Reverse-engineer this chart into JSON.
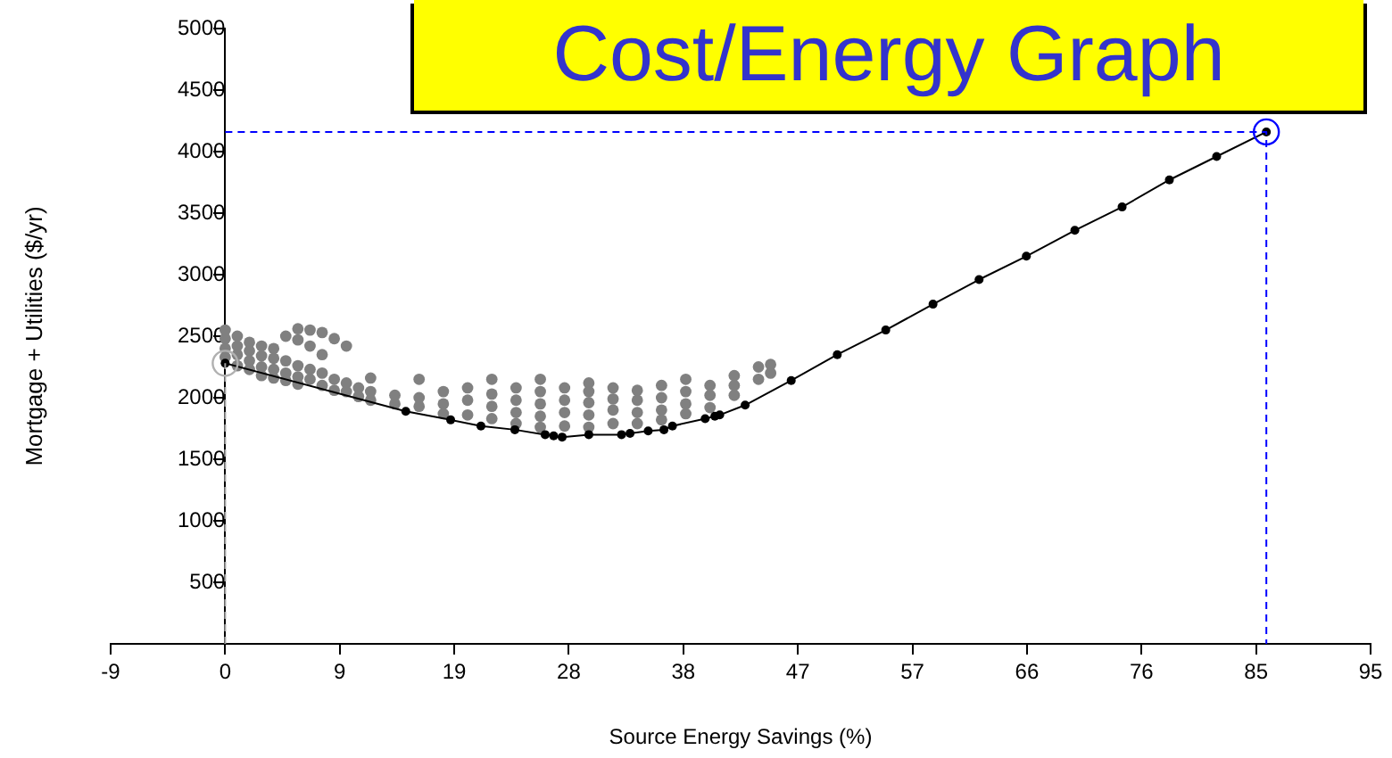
{
  "chart_data": {
    "type": "scatter",
    "title": "Cost/Energy Graph",
    "xlabel": "Source Energy Savings (%)",
    "ylabel": "Mortgage + Utilities ($/yr)",
    "xlim": [
      -9.45,
      94.5
    ],
    "xticks": [
      {
        "value": -9.45,
        "label": "-9"
      },
      0,
      {
        "value": 9.45,
        "label": "9"
      },
      {
        "value": 18.9,
        "label": "19"
      },
      {
        "value": 28.35,
        "label": "28"
      },
      {
        "value": 37.8,
        "label": "38"
      },
      {
        "value": 47.25,
        "label": "47"
      },
      {
        "value": 56.7,
        "label": "57"
      },
      {
        "value": 66.15,
        "label": "66"
      },
      {
        "value": 75.6,
        "label": "76"
      },
      {
        "value": 85.05,
        "label": "85"
      },
      {
        "value": 94.5,
        "label": "95"
      }
    ],
    "ylim": [
      0,
      5000
    ],
    "yticks": [
      {
        "value": 0,
        "label": null
      },
      500,
      1000,
      1500,
      2000,
      2500,
      3000,
      3500,
      4000,
      4500,
      5000
    ],
    "grid": false,
    "legend": false,
    "series": [
      {
        "color": "#808080",
        "marker": "circle",
        "x": [
          0,
          0,
          0,
          0,
          1,
          1,
          1,
          1,
          2,
          2,
          2,
          2,
          3,
          3,
          3,
          3,
          4,
          4,
          4,
          4,
          5,
          5,
          5,
          5,
          6,
          6,
          6,
          6,
          6,
          7,
          7,
          7,
          7,
          8,
          8,
          8,
          8,
          9,
          9,
          9,
          10,
          10,
          10,
          11,
          11,
          12,
          12,
          12,
          14,
          14,
          16,
          16,
          16,
          18,
          18,
          18,
          20,
          20,
          20,
          22,
          22,
          22,
          22,
          24,
          24,
          24,
          24,
          26,
          26,
          26,
          26,
          26,
          28,
          28,
          28,
          28,
          30,
          30,
          30,
          30,
          30,
          32,
          32,
          32,
          32,
          34,
          34,
          34,
          34,
          36,
          36,
          36,
          36,
          38,
          38,
          38,
          38,
          40,
          40,
          40,
          42,
          42,
          42,
          44,
          44,
          45,
          45
        ],
        "values": [
          2550,
          2480,
          2400,
          2330,
          2500,
          2420,
          2350,
          2260,
          2450,
          2380,
          2300,
          2230,
          2420,
          2340,
          2250,
          2180,
          2400,
          2320,
          2230,
          2160,
          2500,
          2300,
          2200,
          2140,
          2560,
          2470,
          2260,
          2170,
          2110,
          2550,
          2420,
          2230,
          2150,
          2530,
          2350,
          2200,
          2100,
          2480,
          2150,
          2060,
          2420,
          2120,
          2050,
          2080,
          2010,
          2160,
          2050,
          1980,
          2020,
          1950,
          2150,
          2000,
          1930,
          2050,
          1950,
          1870,
          2080,
          1980,
          1860,
          2150,
          2030,
          1930,
          1830,
          2080,
          1980,
          1880,
          1790,
          2150,
          2050,
          1950,
          1850,
          1760,
          2080,
          1980,
          1880,
          1770,
          2120,
          2050,
          1960,
          1860,
          1760,
          2080,
          1990,
          1900,
          1790,
          2060,
          1980,
          1880,
          1790,
          2100,
          2000,
          1900,
          1820,
          2150,
          2050,
          1950,
          1870,
          2100,
          2020,
          1920,
          2180,
          2100,
          2020,
          2250,
          2150,
          2270,
          2200
        ]
      },
      {
        "type": "line",
        "color": "#000000",
        "marker": "circle",
        "line_style": "solid",
        "x": [
          0,
          14.9,
          18.6,
          21.1,
          23.9,
          26.4,
          27.1,
          27.8,
          30.0,
          32.7,
          33.4,
          34.9,
          36.2,
          36.9,
          39.6,
          40.4,
          40.8,
          42.9,
          46.7,
          50.5,
          54.5,
          58.4,
          62.2,
          66.1,
          70.1,
          74.0,
          77.9,
          81.8,
          85.9
        ],
        "values": [
          2280,
          1890,
          1820,
          1770,
          1740,
          1700,
          1690,
          1680,
          1700,
          1700,
          1710,
          1730,
          1740,
          1770,
          1830,
          1850,
          1860,
          1940,
          2140,
          2350,
          2550,
          2760,
          2960,
          3150,
          3360,
          3550,
          3770,
          3960,
          4160
        ]
      },
      {
        "type": "line",
        "color": "#0000ff",
        "marker": "none",
        "line_style": "dashed",
        "x": [
          0,
          85.9,
          85.9
        ],
        "values": [
          4160,
          4160,
          0
        ]
      },
      {
        "type": "line",
        "color": "#a0a0a0",
        "marker": "none",
        "line_style": "dashed",
        "x": [
          0,
          0
        ],
        "values": [
          0,
          2280
        ]
      },
      {
        "type": "scatter",
        "color": "#0000ff",
        "marker": "circle",
        "x": [
          85.9
        ],
        "values": [
          4160
        ]
      },
      {
        "type": "scatter",
        "color": "#b0b0b0",
        "marker": "circle",
        "x": [
          0
        ],
        "values": [
          2280
        ]
      }
    ]
  }
}
